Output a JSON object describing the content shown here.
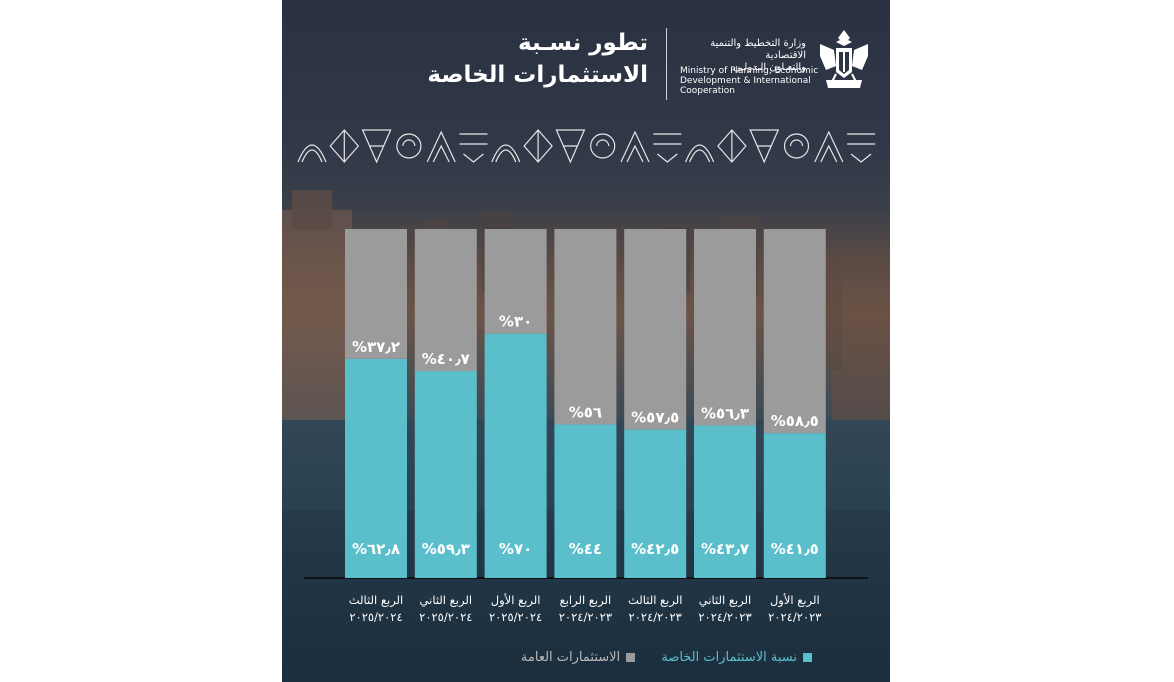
{
  "header": {
    "title_line1": "تطور نسـبة",
    "title_line2": "الاستثمارات الخاصة",
    "ministry_ar_line1": "وزارة التخطيط والتنمية الاقتصادية",
    "ministry_ar_line2": "والتعـاون الـدولـي",
    "ministry_en_line1": "Ministry of Planning, Economic",
    "ministry_en_line2": "Development & International",
    "ministry_en_line3": "Cooperation"
  },
  "colors": {
    "private": "#5bbfcb",
    "public": "#9b9b9b",
    "background_top": "#2a3242",
    "background_bottom": "#1b2e3e"
  },
  "icons": [
    "egypt-eagle-emblem-icon",
    "geometric-pattern-icon"
  ],
  "legend": {
    "private_label": "نسبة الاستثمارات الخاصة",
    "public_label": "الاستثمارات العامة"
  },
  "chart_data": {
    "type": "bar",
    "stacked": true,
    "percent_stacked": true,
    "ylim": [
      0,
      100
    ],
    "grid": false,
    "legend_position": "bottom",
    "categories": [
      {
        "quarter": "الربع الثالث",
        "period": "٢٠٢٥/٢٠٢٤"
      },
      {
        "quarter": "الربع الثاني",
        "period": "٢٠٢٥/٢٠٢٤"
      },
      {
        "quarter": "الربع الأول",
        "period": "٢٠٢٥/٢٠٢٤"
      },
      {
        "quarter": "الربع الرابع",
        "period": "٢٠٢٤/٢٠٢٣"
      },
      {
        "quarter": "الربع الثالث",
        "period": "٢٠٢٤/٢٠٢٣"
      },
      {
        "quarter": "الربع الثاني",
        "period": "٢٠٢٤/٢٠٢٣"
      },
      {
        "quarter": "الربع الأول",
        "period": "٢٠٢٤/٢٠٢٣"
      }
    ],
    "series": [
      {
        "name": "نسبة الاستثمارات الخاصة",
        "values": [
          62.8,
          59.3,
          70,
          44,
          42.5,
          43.7,
          41.5
        ],
        "labels": [
          "%٦٢٫٨",
          "%٥٩٫٣",
          "%٧٠",
          "%٤٤",
          "%٤٢٫٥",
          "%٤٣٫٧",
          "%٤١٫٥"
        ]
      },
      {
        "name": "الاستثمارات العامة",
        "values": [
          37.2,
          40.7,
          30,
          56,
          57.5,
          56.3,
          58.5
        ],
        "labels": [
          "%٣٧٫٢",
          "%٤٠٫٧",
          "%٣٠",
          "%٥٦",
          "%٥٧٫٥",
          "%٥٦٫٣",
          "%٥٨٫٥"
        ]
      }
    ]
  }
}
